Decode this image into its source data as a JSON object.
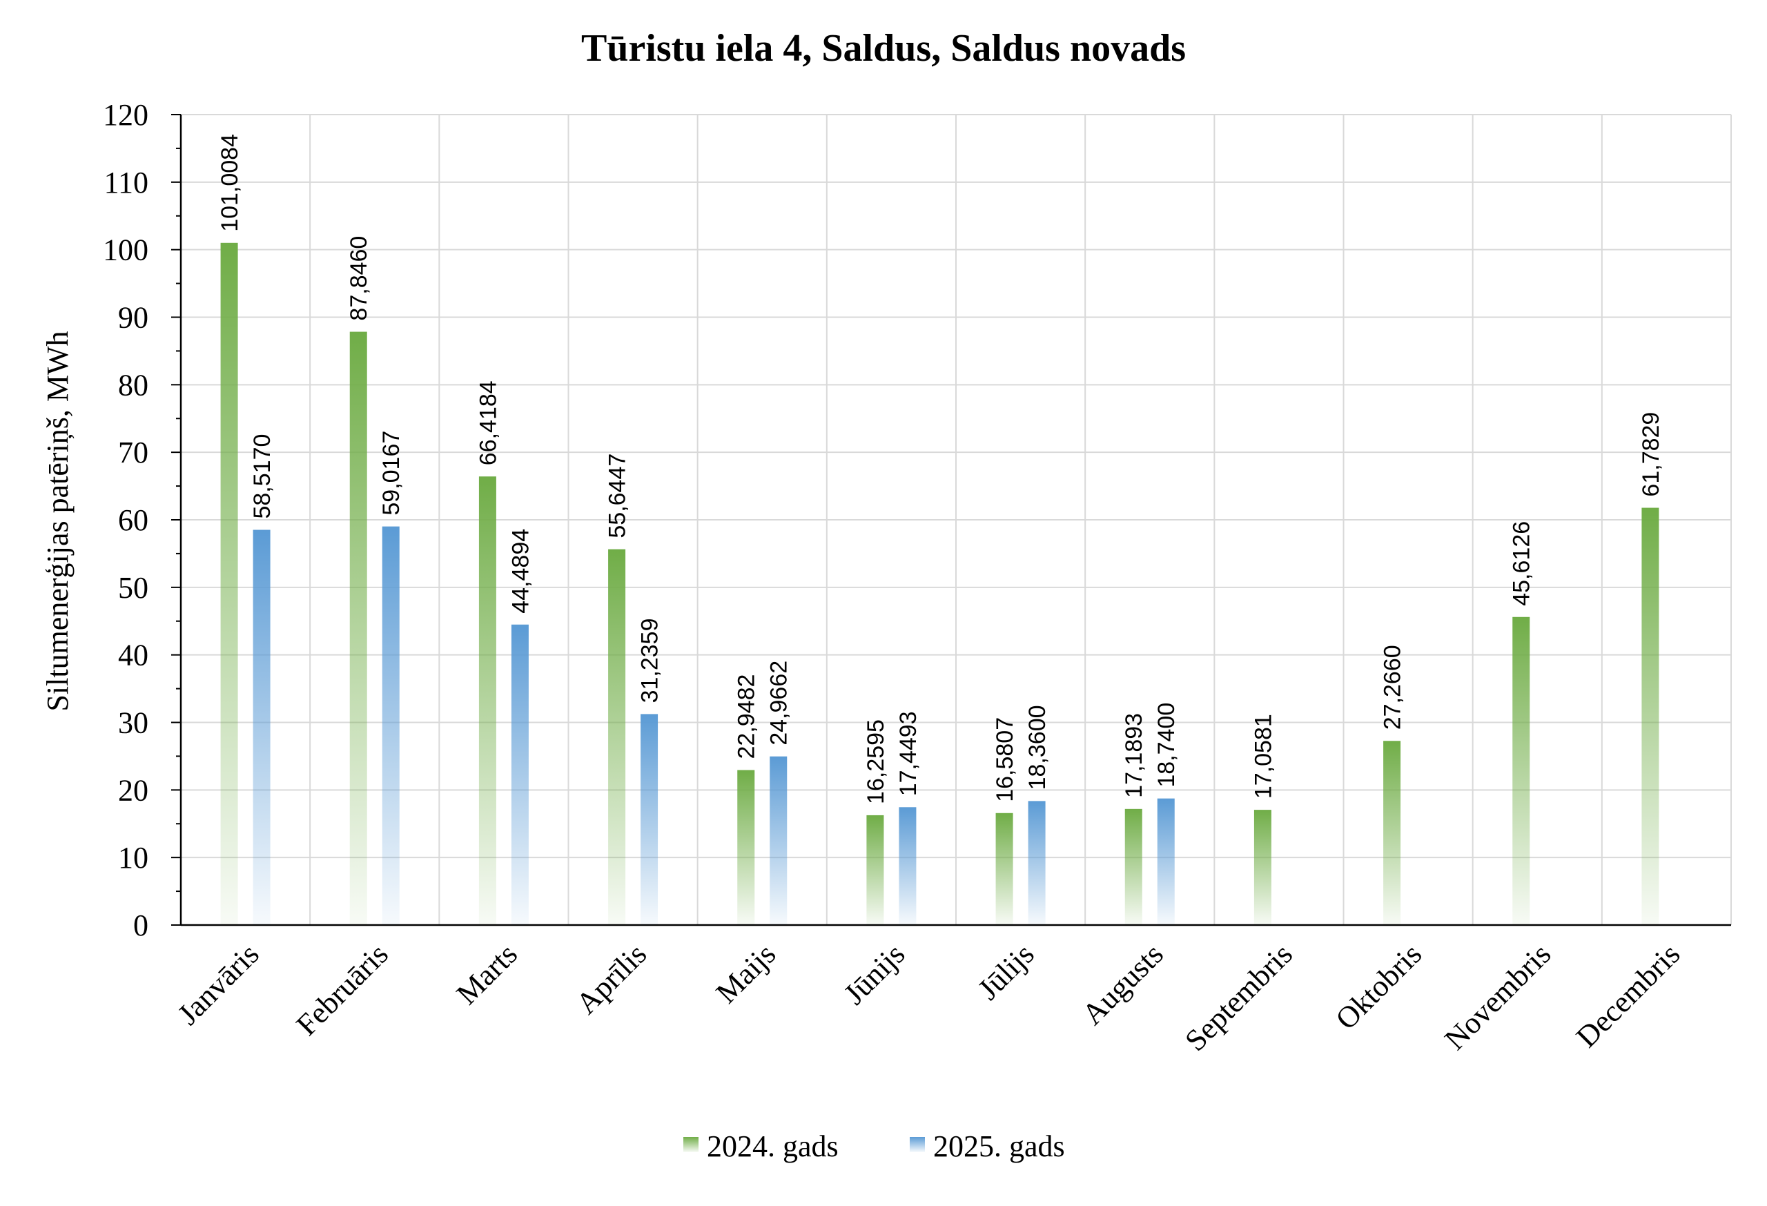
{
  "chart_data": {
    "type": "bar",
    "title": "Tūristu iela 4, Saldus, Saldus novads",
    "ylabel": "Siltumenerģijas patēriņš, MWh",
    "xlabel": "",
    "ylim": [
      0,
      120
    ],
    "ytick_step": 10,
    "grid": true,
    "legend_position": "bottom",
    "categories": [
      "Janvāris",
      "Februāris",
      "Marts",
      "Aprīlis",
      "Maijs",
      "Jūnijs",
      "Jūlijs",
      "Augusts",
      "Septembris",
      "Oktobris",
      "Novembris",
      "Decembris"
    ],
    "series": [
      {
        "name": "2024. gads",
        "color": "#70ad47",
        "values": [
          101.0084,
          87.846,
          66.4184,
          55.6447,
          22.9482,
          16.2595,
          16.5807,
          17.1893,
          17.0581,
          27.266,
          45.6126,
          61.7829
        ],
        "labels": [
          "101,0084",
          "87,8460",
          "66,4184",
          "55,6447",
          "22,9482",
          "16,2595",
          "16,5807",
          "17,1893",
          "17,0581",
          "27,2660",
          "45,6126",
          "61,7829"
        ]
      },
      {
        "name": "2025. gads",
        "color": "#5b9bd5",
        "values": [
          58.517,
          59.0167,
          44.4894,
          31.2359,
          24.9662,
          17.4493,
          18.36,
          18.74,
          null,
          null,
          null,
          null
        ],
        "labels": [
          "58,5170",
          "59,0167",
          "44,4894",
          "31,2359",
          "24,9662",
          "17,4493",
          "18,3600",
          "18,7400",
          "",
          "",
          "",
          ""
        ]
      }
    ]
  }
}
